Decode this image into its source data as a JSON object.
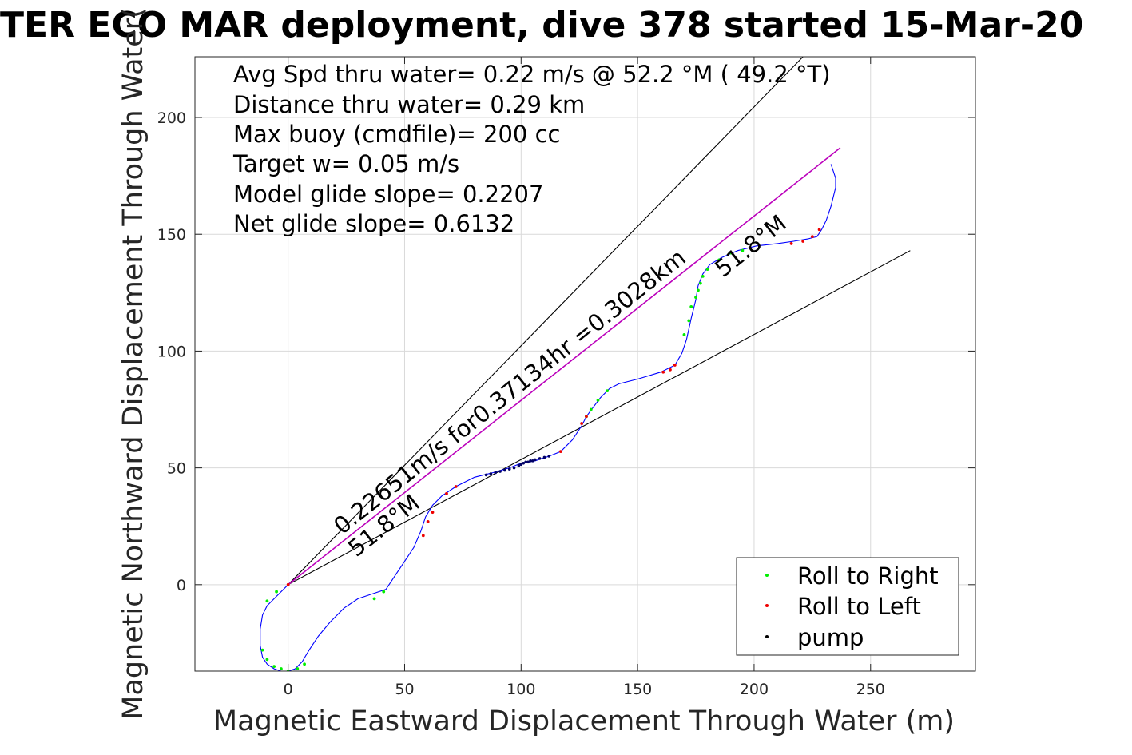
{
  "chart_data": {
    "type": "line",
    "title": "TER ECO MAR deployment, dive 378 started 15-Mar-20",
    "xlabel": "Magnetic Eastward Displacement Through Water (m)",
    "ylabel": "Magnetic Northward Displacement Through Water(",
    "xlim": [
      -40,
      295
    ],
    "ylim": [
      -37,
      226
    ],
    "xticks": [
      0,
      50,
      100,
      150,
      200,
      250
    ],
    "yticks": [
      0,
      50,
      100,
      150,
      200
    ],
    "grid": true,
    "legend_placement": "bottom-right",
    "annotations": [
      "Avg Spd thru water=  0.22 m/s @  52.2 °M ( 49.2 °T)",
      "Distance thru water=  0.29 km",
      "Max buoy (cmdfile)= 200 cc",
      "Target w= 0.05 m/s",
      "Model glide slope= 0.2207",
      "Net glide slope= 0.6132"
    ],
    "line_labels": {
      "along_track": "0.22651m/s for0.37134hr =0.3028km",
      "heading_center": "51.8°M",
      "heading_lower": "51.8°M"
    },
    "reference_lines": [
      {
        "name": "upper bound",
        "color": "#000000",
        "x": [
          0,
          221
        ],
        "y": [
          0,
          226
        ]
      },
      {
        "name": "lower bound",
        "color": "#000000",
        "x": [
          0,
          267
        ],
        "y": [
          0,
          143
        ]
      },
      {
        "name": "heading line",
        "color": "#bb00bb",
        "x": [
          0,
          237
        ],
        "y": [
          0,
          187
        ]
      }
    ],
    "track": {
      "color": "#0000ff",
      "x": [
        0,
        -4,
        -9,
        -11,
        -12,
        -12,
        -11,
        -9,
        -6,
        -3,
        0,
        3,
        6,
        9,
        13,
        18,
        24,
        30,
        36,
        42,
        46,
        50,
        54,
        57,
        59,
        62,
        66,
        72,
        80,
        88,
        95,
        100,
        106,
        112,
        117,
        122,
        126,
        128,
        131,
        134,
        138,
        142,
        150,
        160,
        166,
        169,
        171,
        173,
        175,
        176,
        178,
        181,
        186,
        193,
        201,
        210,
        217,
        223,
        227,
        229,
        231,
        233,
        235,
        235,
        233
      ],
      "y": [
        0,
        -4,
        -9,
        -13,
        -19,
        -26,
        -31,
        -34,
        -36,
        -37,
        -37,
        -36,
        -33,
        -28,
        -22,
        -16,
        -10,
        -6,
        -4,
        -2,
        4,
        10,
        16,
        23,
        29,
        34,
        38,
        42,
        46,
        48,
        50,
        52,
        53,
        55,
        57,
        62,
        68,
        72,
        76,
        80,
        84,
        86,
        88,
        91,
        94,
        99,
        105,
        114,
        122,
        128,
        133,
        137,
        140,
        143,
        145,
        146,
        147,
        148,
        149,
        152,
        156,
        162,
        170,
        174,
        180
      ]
    },
    "series": [
      {
        "name": "Roll to Right",
        "color": "#00ee00",
        "x": [
          -5,
          -9,
          -11,
          -9,
          -6,
          -3,
          0,
          4,
          7,
          37,
          41,
          128,
          130,
          133,
          137,
          170,
          172,
          173,
          175,
          176,
          177,
          178,
          180,
          185,
          190,
          195
        ],
        "y": [
          -3,
          -7,
          -28,
          -32,
          -35,
          -36,
          -37,
          -36,
          -34,
          -6,
          -3,
          72,
          75,
          79,
          83,
          107,
          113,
          119,
          123,
          126,
          129,
          132,
          135,
          139,
          142,
          143
        ]
      },
      {
        "name": "Roll to Left",
        "color": "#ee0000",
        "x": [
          0,
          58,
          60,
          62,
          68,
          72,
          117,
          126,
          128,
          161,
          164,
          166,
          216,
          221,
          225,
          228
        ],
        "y": [
          0,
          21,
          27,
          31,
          39,
          42,
          57,
          69,
          72,
          91,
          92,
          94,
          146,
          147,
          149,
          152
        ],
        "alt_color": "#bb00bb"
      },
      {
        "name": "pump",
        "color": "#000066",
        "x": [
          85,
          87,
          89,
          91,
          93,
          95,
          97,
          99,
          100,
          101,
          102,
          103,
          104,
          105,
          106,
          108,
          110,
          112
        ],
        "y": [
          47,
          47.5,
          48,
          48.5,
          49,
          49.5,
          50,
          51,
          51.5,
          52,
          52.5,
          52.5,
          53,
          53,
          53.5,
          54,
          54.5,
          55
        ]
      }
    ]
  }
}
